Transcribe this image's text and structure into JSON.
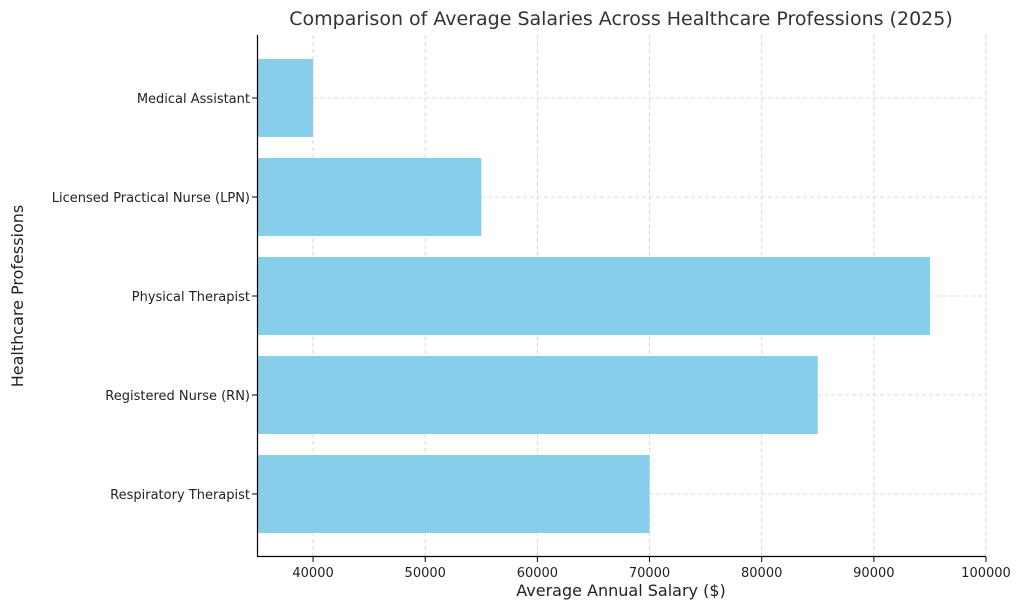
{
  "chart_data": {
    "type": "bar",
    "orientation": "horizontal",
    "title": "Comparison of Average Salaries Across Healthcare Professions (2025)",
    "xlabel": "Average Annual Salary ($)",
    "ylabel": "Healthcare Professions",
    "categories": [
      "Medical Assistant",
      "Licensed Practical Nurse (LPN)",
      "Physical Therapist",
      "Registered Nurse (RN)",
      "Respiratory Therapist"
    ],
    "values": [
      40000,
      55000,
      95000,
      85000,
      70000
    ],
    "xlim": [
      35000,
      100000
    ],
    "xticks": [
      40000,
      50000,
      60000,
      70000,
      80000,
      90000,
      100000
    ],
    "xtick_labels": [
      "40000",
      "50000",
      "60000",
      "70000",
      "80000",
      "90000",
      "100000"
    ],
    "grid": true,
    "bar_color": "#87CEEB"
  }
}
